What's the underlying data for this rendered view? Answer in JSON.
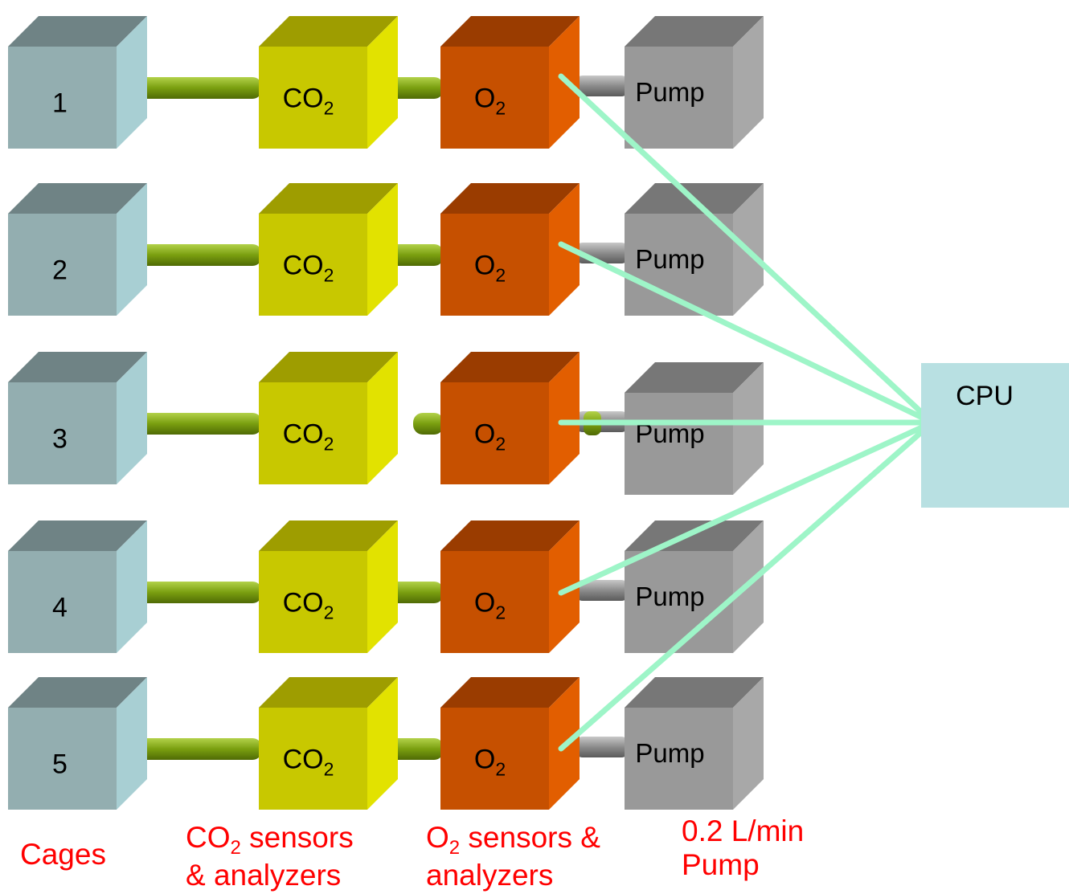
{
  "rows": [
    {
      "cage": "1",
      "co2": "CO",
      "co2_sub": "2",
      "o2": "O",
      "o2_sub": "2",
      "pump": "Pump"
    },
    {
      "cage": "2",
      "co2": "CO",
      "co2_sub": "2",
      "o2": "O",
      "o2_sub": "2",
      "pump": "Pump"
    },
    {
      "cage": "3",
      "co2": "CO",
      "co2_sub": "2",
      "o2": "O",
      "o2_sub": "2",
      "pump": "Pump"
    },
    {
      "cage": "4",
      "co2": "CO",
      "co2_sub": "2",
      "o2": "O",
      "o2_sub": "2",
      "pump": "Pump"
    },
    {
      "cage": "5",
      "co2": "CO",
      "co2_sub": "2",
      "o2": "O",
      "o2_sub": "2",
      "pump": "Pump"
    }
  ],
  "cpu": {
    "label": "CPU"
  },
  "captions": {
    "cages": "Cages",
    "co2_line1_a": "CO",
    "co2_line1_sub": "2",
    "co2_line1_b": " sensors",
    "co2_line2": "& analyzers",
    "o2_line1_a": "O",
    "o2_line1_sub": "2",
    "o2_line1_b": " sensors &",
    "o2_line2": "analyzers",
    "pump_line1": "0.2 L/min",
    "pump_line2": "Pump"
  },
  "colors": {
    "cage": "#93aeb0",
    "cage_top": "#6f8385",
    "cage_side": "#a8cfd3",
    "co2": "#c8c800",
    "co2_top": "#9e9d00",
    "co2_side": "#e2e200",
    "o2": "#c65000",
    "o2_top": "#9a3c00",
    "o2_side": "#e25e00",
    "pump": "#999999",
    "pump_top": "#777777",
    "pump_side": "#a8a8a8",
    "tube": "#7a9f10",
    "tube_grey": "#8c8c8c",
    "wire": "#9ef5c8",
    "cpu": "#b8e0e2",
    "caption": "#ff0000"
  }
}
